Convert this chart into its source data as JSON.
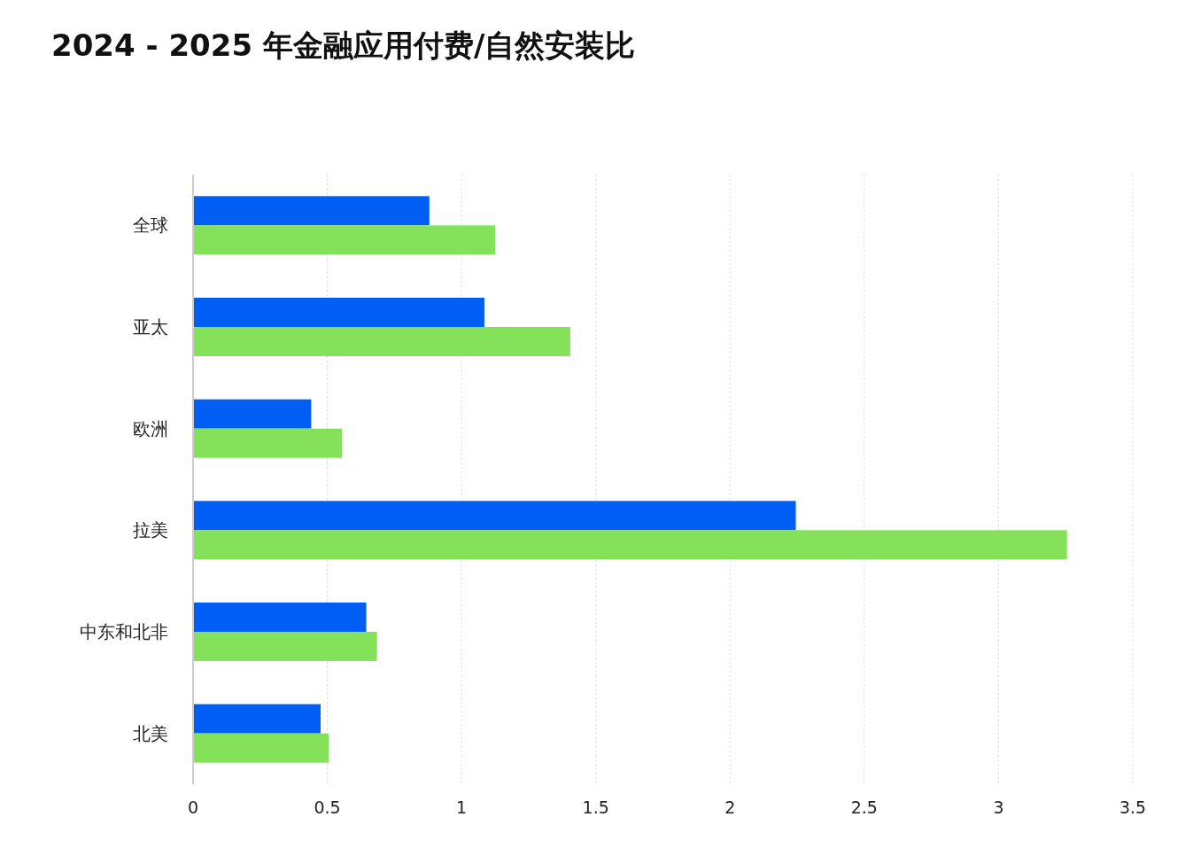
{
  "chart_data": {
    "type": "bar",
    "orientation": "horizontal",
    "title": "2024 - 2025 年金融应用付费/自然安装比",
    "categories": [
      "全球",
      "亚太",
      "欧洲",
      "拉美",
      "中东和北非",
      "北美"
    ],
    "series": [
      {
        "color": "#005ef5",
        "values": [
          0.88,
          1.085,
          0.44,
          2.245,
          0.645,
          0.475
        ]
      },
      {
        "color": "#85e05a",
        "values": [
          1.125,
          1.405,
          0.555,
          3.255,
          0.685,
          0.505
        ]
      }
    ],
    "xlim": [
      0,
      3.5
    ],
    "xticks": [
      0,
      0.5,
      1,
      1.5,
      2,
      2.5,
      3,
      3.5
    ],
    "grid": "x"
  }
}
